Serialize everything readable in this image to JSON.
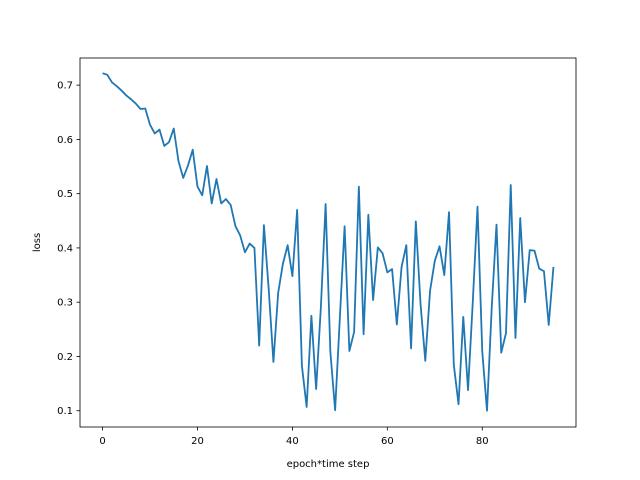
{
  "chart_data": {
    "type": "line",
    "title": "",
    "xlabel": "epoch*time step",
    "ylabel": "loss",
    "xlim": [
      -4.75,
      99.75
    ],
    "ylim": [
      0.07,
      0.75
    ],
    "xticks": [
      0,
      20,
      40,
      60,
      80
    ],
    "yticks": [
      0.1,
      0.2,
      0.3,
      0.4,
      0.5,
      0.6,
      0.7
    ],
    "xtick_labels": [
      "0",
      "20",
      "40",
      "60",
      "80"
    ],
    "ytick_labels": [
      "0.1",
      "0.2",
      "0.3",
      "0.4",
      "0.5",
      "0.6",
      "0.7"
    ],
    "grid": false,
    "legend": "none",
    "colors": {
      "line": "#1f77b4",
      "axes": "#000000",
      "background": "#ffffff"
    },
    "series": [
      {
        "x": [
          0,
          1,
          2,
          3,
          4,
          5,
          6,
          7,
          8,
          9,
          10,
          11,
          12,
          13,
          14,
          15,
          16,
          17,
          18,
          19,
          20,
          21,
          22,
          23,
          24,
          25,
          26,
          27,
          28,
          29,
          30,
          31,
          32,
          33,
          34,
          35,
          36,
          37,
          38,
          39,
          40,
          41,
          42,
          43,
          44,
          45,
          46,
          47,
          48,
          49,
          50,
          51,
          52,
          53,
          54,
          55,
          56,
          57,
          58,
          59,
          60,
          61,
          62,
          63,
          64,
          65,
          66,
          67,
          68,
          69,
          70,
          71,
          72,
          73,
          74,
          75,
          76,
          77,
          78,
          79,
          80,
          81,
          82,
          83,
          84,
          85,
          86,
          87,
          88,
          89,
          90,
          91,
          92,
          93,
          94,
          95
        ],
        "values": [
          0.722,
          0.719,
          0.705,
          0.698,
          0.69,
          0.681,
          0.674,
          0.666,
          0.656,
          0.657,
          0.627,
          0.611,
          0.618,
          0.588,
          0.595,
          0.62,
          0.56,
          0.529,
          0.552,
          0.581,
          0.513,
          0.497,
          0.551,
          0.482,
          0.527,
          0.482,
          0.49,
          0.479,
          0.44,
          0.423,
          0.392,
          0.408,
          0.4,
          0.22,
          0.442,
          0.325,
          0.19,
          0.317,
          0.371,
          0.405,
          0.348,
          0.47,
          0.183,
          0.107,
          0.275,
          0.14,
          0.291,
          0.481,
          0.208,
          0.101,
          0.272,
          0.44,
          0.21,
          0.245,
          0.513,
          0.241,
          0.461,
          0.304,
          0.401,
          0.39,
          0.355,
          0.361,
          0.259,
          0.365,
          0.405,
          0.215,
          0.449,
          0.296,
          0.192,
          0.321,
          0.376,
          0.403,
          0.35,
          0.466,
          0.185,
          0.112,
          0.273,
          0.138,
          0.3,
          0.476,
          0.209,
          0.1,
          0.291,
          0.443,
          0.207,
          0.243,
          0.516,
          0.234,
          0.455,
          0.3,
          0.396,
          0.395,
          0.362,
          0.357,
          0.258,
          0.365
        ]
      }
    ]
  }
}
